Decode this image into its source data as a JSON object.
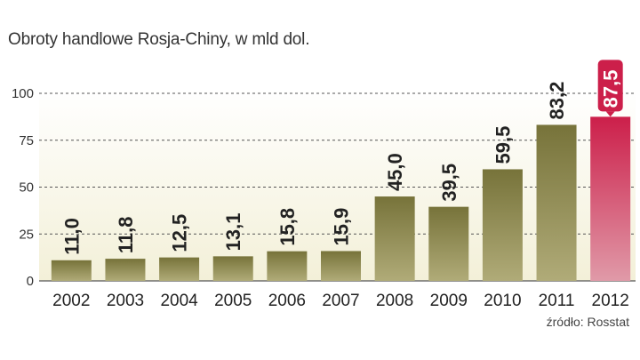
{
  "title": "Obroty handlowe Rosja-Chiny, w mld dol.",
  "source": "źródło: Rosstat",
  "colors": {
    "bar": "#77733a",
    "bar_light": "#b0ab78",
    "highlight": "#cc1f4a",
    "highlight_light": "#e09aa8",
    "background_band": "#f3f0d8"
  },
  "chart_data": {
    "type": "bar",
    "categories": [
      "2002",
      "2003",
      "2004",
      "2005",
      "2006",
      "2007",
      "2008",
      "2009",
      "2010",
      "2011",
      "2012"
    ],
    "values": [
      11.0,
      11.8,
      12.5,
      13.1,
      15.8,
      15.9,
      45.0,
      39.5,
      59.5,
      83.2,
      87.5
    ],
    "value_labels": [
      "11,0",
      "11,8",
      "12,5",
      "13,1",
      "15,8",
      "15,9",
      "45,0",
      "39,5",
      "59,5",
      "83,2",
      "87,5"
    ],
    "highlight_index": 10,
    "ylim": [
      0,
      100
    ],
    "yticks": [
      0,
      25,
      50,
      75,
      100
    ],
    "grid": true,
    "title": "Obroty handlowe Rosja-Chiny, w mld dol."
  }
}
